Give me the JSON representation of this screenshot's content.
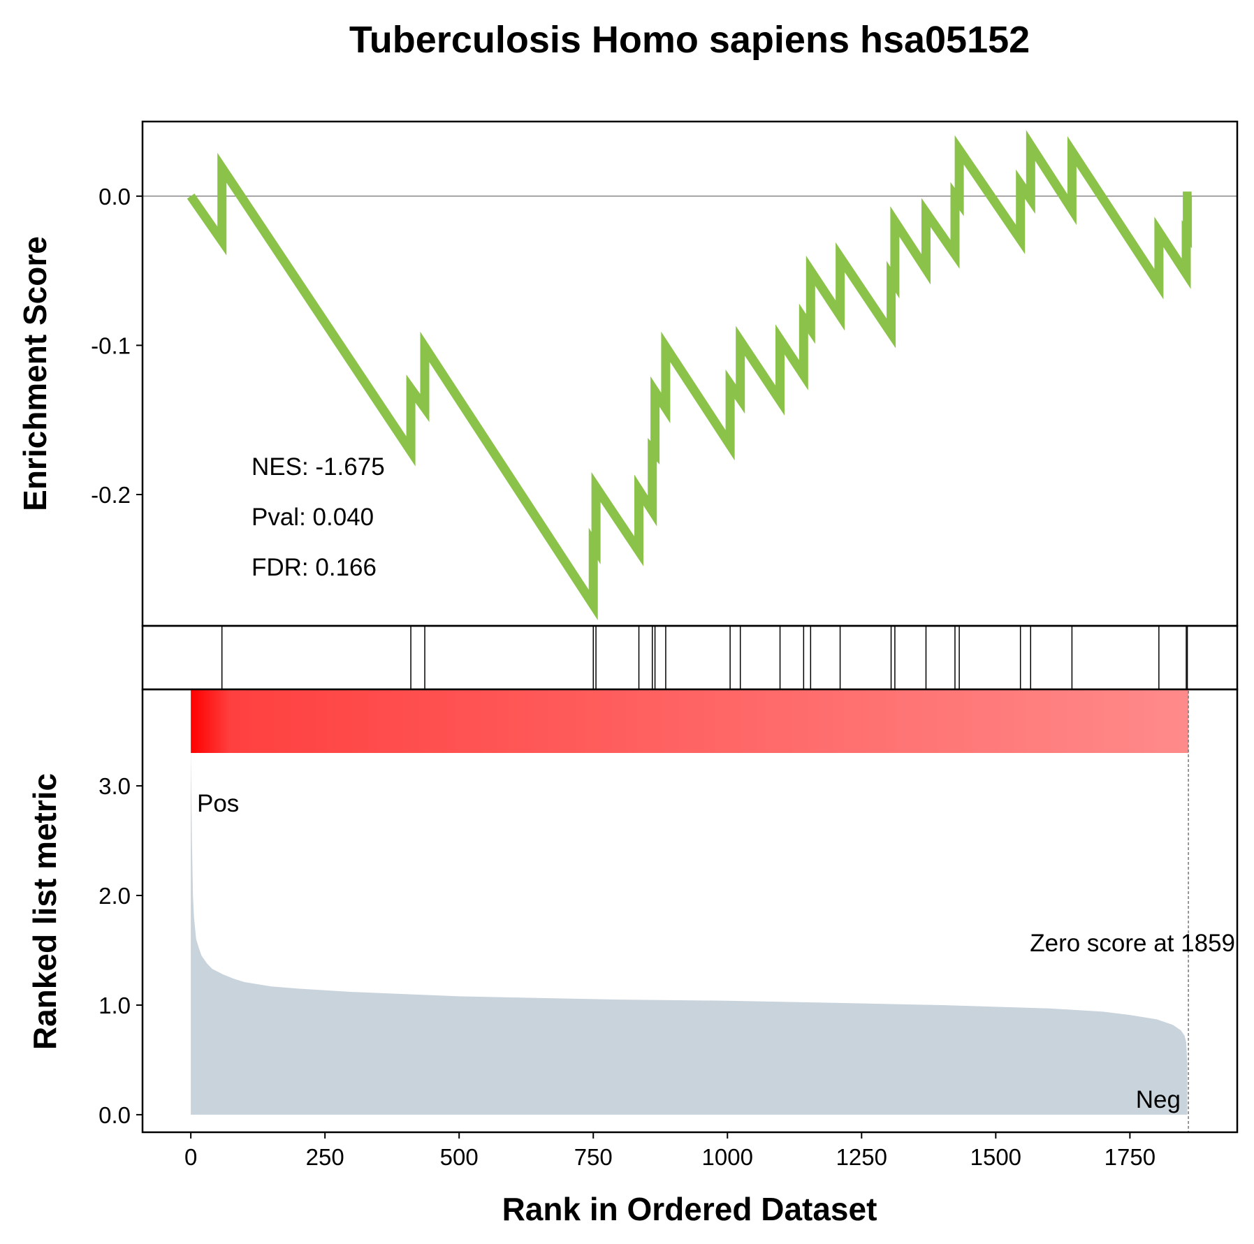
{
  "chart_data": {
    "type": "line",
    "title": "Tuberculosis Homo sapiens hsa05152",
    "xlabel": "Rank in Ordered Dataset",
    "colors": {
      "es_line": "#8bc34a",
      "metric_fill": "#c9d3dc",
      "pos_label": "#ff0000",
      "neg_label": "#0000ff",
      "heat_start": "#ff0000",
      "heat_end": "#ff8a8a"
    },
    "xlim": [
      -90,
      1950
    ],
    "x_ticks": [
      0,
      250,
      500,
      750,
      1000,
      1250,
      1500,
      1750
    ],
    "x_tick_labels": [
      "0",
      "250",
      "500",
      "750",
      "1000",
      "1250",
      "1500",
      "1750"
    ],
    "enrichment_panel": {
      "ylabel": "Enrichment Score",
      "ylim": [
        -0.288,
        0.05
      ],
      "y_ticks": [
        0.0,
        -0.1,
        -0.2
      ],
      "y_tick_labels": [
        "0.0",
        "-0.1",
        "-0.2"
      ],
      "zero_line": true,
      "series": [
        {
          "points": [
            [
              0,
              0.0
            ],
            [
              58,
              -0.03
            ],
            [
              58,
              0.019
            ],
            [
              410,
              -0.171
            ],
            [
              410,
              -0.129
            ],
            [
              424,
              -0.136
            ],
            [
              436,
              -0.142
            ],
            [
              436,
              -0.101
            ],
            [
              750,
              -0.274
            ],
            [
              750,
              -0.233
            ],
            [
              755,
              -0.236
            ],
            [
              755,
              -0.195
            ],
            [
              835,
              -0.238
            ],
            [
              835,
              -0.197
            ],
            [
              860,
              -0.211
            ],
            [
              860,
              -0.17
            ],
            [
              865,
              -0.172
            ],
            [
              865,
              -0.131
            ],
            [
              885,
              -0.142
            ],
            [
              885,
              -0.101
            ],
            [
              1005,
              -0.167
            ],
            [
              1005,
              -0.126
            ],
            [
              1024,
              -0.136
            ],
            [
              1024,
              -0.097
            ],
            [
              1098,
              -0.137
            ],
            [
              1098,
              -0.096
            ],
            [
              1142,
              -0.12
            ],
            [
              1142,
              -0.082
            ],
            [
              1155,
              -0.089
            ],
            [
              1155,
              -0.05
            ],
            [
              1210,
              -0.08
            ],
            [
              1210,
              -0.041
            ],
            [
              1305,
              -0.092
            ],
            [
              1305,
              -0.054
            ],
            [
              1312,
              -0.058
            ],
            [
              1312,
              -0.017
            ],
            [
              1370,
              -0.049
            ],
            [
              1370,
              -0.011
            ],
            [
              1424,
              -0.039
            ],
            [
              1424,
              0.0
            ],
            [
              1432,
              -0.004
            ],
            [
              1432,
              0.031
            ],
            [
              1546,
              -0.029
            ],
            [
              1546,
              0.008
            ],
            [
              1565,
              -0.002
            ],
            [
              1565,
              0.034
            ],
            [
              1642,
              -0.009
            ],
            [
              1642,
              0.03
            ],
            [
              1804,
              -0.059
            ],
            [
              1804,
              -0.024
            ],
            [
              1855,
              -0.052
            ],
            [
              1855,
              -0.025
            ],
            [
              1857,
              -0.026
            ],
            [
              1857,
              0.0
            ],
            [
              1865,
              0.0
            ]
          ]
        }
      ],
      "annotations": {
        "nes": "NES: -1.675",
        "pval": "Pval: 0.040",
        "fdr": "FDR: 0.166"
      }
    },
    "hits_panel": {
      "hit_ranks": [
        58,
        410,
        436,
        750,
        755,
        835,
        860,
        865,
        885,
        1005,
        1024,
        1098,
        1142,
        1155,
        1210,
        1305,
        1312,
        1370,
        1424,
        1432,
        1546,
        1565,
        1642,
        1804,
        1855,
        1857
      ]
    },
    "metric_panel": {
      "ylabel": "Ranked list metric",
      "ylim": [
        -0.16,
        3.88
      ],
      "y_ticks": [
        0.0,
        1.0,
        2.0,
        3.0
      ],
      "y_tick_labels": [
        "0.0",
        "1.0",
        "2.0",
        "3.0"
      ],
      "profile": [
        [
          0,
          3.35
        ],
        [
          2,
          2.5
        ],
        [
          4,
          2.0
        ],
        [
          6,
          1.8
        ],
        [
          10,
          1.6
        ],
        [
          15,
          1.52
        ],
        [
          20,
          1.45
        ],
        [
          30,
          1.38
        ],
        [
          40,
          1.33
        ],
        [
          60,
          1.28
        ],
        [
          80,
          1.24
        ],
        [
          100,
          1.21
        ],
        [
          150,
          1.17
        ],
        [
          200,
          1.15
        ],
        [
          300,
          1.12
        ],
        [
          400,
          1.1
        ],
        [
          500,
          1.08
        ],
        [
          600,
          1.07
        ],
        [
          800,
          1.05
        ],
        [
          1000,
          1.04
        ],
        [
          1200,
          1.02
        ],
        [
          1400,
          1.0
        ],
        [
          1600,
          0.97
        ],
        [
          1700,
          0.94
        ],
        [
          1750,
          0.91
        ],
        [
          1800,
          0.87
        ],
        [
          1830,
          0.82
        ],
        [
          1845,
          0.77
        ],
        [
          1852,
          0.72
        ],
        [
          1855,
          0.66
        ],
        [
          1857,
          0.45
        ]
      ],
      "zero_score_rank": 1859,
      "zero_score_text": "Zero score at 1859",
      "pos_label": "Pos",
      "neg_label": "Neg"
    }
  }
}
